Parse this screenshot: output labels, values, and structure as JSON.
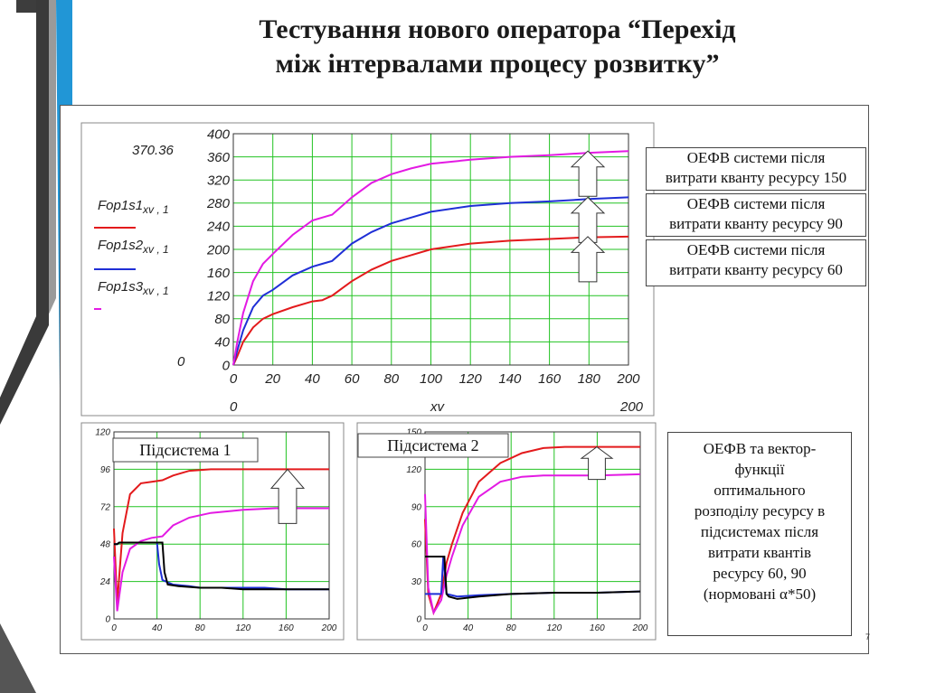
{
  "slide": {
    "title_line1": "Тестування нового оператора “Перехід",
    "title_line2": "між інтервалами процесу розвитку”",
    "page_number": "7",
    "accent_colors": [
      "#3a3a3a",
      "#2196d6",
      "#888888"
    ]
  },
  "main_chart_labels": {
    "ymax_readout": "370.36",
    "ymin_readout": "0",
    "xmin_readout": "0",
    "xmax_readout": "200",
    "xlabel": "xv",
    "legend": [
      {
        "main": "Fop1s1",
        "sub": "xv , 1",
        "color": "#e31a1c"
      },
      {
        "main": "Fop1s2",
        "sub": "xv , 1",
        "color": "#1f2fd6"
      },
      {
        "main": "Fop1s3",
        "sub": "xv , 1",
        "color": "#e31ae3"
      }
    ]
  },
  "legend_boxes": [
    {
      "line1": "ОЕФВ системи після",
      "line2": "витрати кванту ресурсу 150"
    },
    {
      "line1": "ОЕФВ системи після",
      "line2": "витрати кванту ресурсу 90"
    },
    {
      "line1": "ОЕФВ системи після",
      "line2": "витрати кванту ресурсу 60"
    }
  ],
  "side_note": {
    "lines": [
      "ОЕФВ та вектор-",
      "функції",
      "оптимального",
      "розподілу ресурсу в",
      "підсистемах після",
      "витрати квантів",
      "ресурсу 60, 90",
      "(нормовані α*50)"
    ]
  },
  "chart_data": [
    {
      "type": "line",
      "xlim": [
        0,
        200
      ],
      "ylim": [
        0,
        400
      ],
      "xticks": [
        0,
        20,
        40,
        60,
        80,
        100,
        120,
        140,
        160,
        180,
        200
      ],
      "yticks": [
        0,
        40,
        80,
        120,
        160,
        200,
        240,
        280,
        320,
        360,
        400
      ],
      "grid": true,
      "series": [
        {
          "name": "Fop1s1",
          "color": "#e31a1c",
          "x": [
            0,
            2,
            5,
            10,
            15,
            20,
            30,
            40,
            45,
            50,
            60,
            70,
            80,
            90,
            100,
            120,
            140,
            160,
            180,
            200
          ],
          "y": [
            0,
            15,
            40,
            65,
            80,
            88,
            100,
            110,
            112,
            120,
            145,
            165,
            180,
            190,
            200,
            210,
            215,
            218,
            221,
            222
          ]
        },
        {
          "name": "Fop1s2",
          "color": "#1f2fd6",
          "x": [
            0,
            2,
            5,
            10,
            15,
            20,
            30,
            40,
            45,
            50,
            60,
            70,
            80,
            90,
            100,
            120,
            140,
            160,
            180,
            200
          ],
          "y": [
            0,
            25,
            60,
            100,
            120,
            130,
            155,
            170,
            175,
            180,
            210,
            230,
            245,
            255,
            265,
            275,
            280,
            283,
            287,
            290
          ]
        },
        {
          "name": "Fop1s3",
          "color": "#e31ae3",
          "x": [
            0,
            2,
            5,
            10,
            15,
            20,
            30,
            40,
            45,
            50,
            60,
            70,
            80,
            90,
            100,
            120,
            140,
            160,
            180,
            200
          ],
          "y": [
            0,
            40,
            90,
            145,
            175,
            192,
            225,
            250,
            255,
            260,
            290,
            315,
            330,
            340,
            348,
            355,
            360,
            363,
            367,
            370
          ]
        }
      ],
      "arrows_at_y": [
        370,
        290,
        222
      ]
    },
    {
      "type": "line",
      "title": "Підсистема 1",
      "xlim": [
        0,
        200
      ],
      "ylim": [
        0,
        120
      ],
      "xticks": [
        0,
        40,
        80,
        120,
        160,
        200
      ],
      "yticks": [
        0,
        24,
        48,
        72,
        96,
        120
      ],
      "grid": true,
      "series": [
        {
          "color": "#e31a1c",
          "x": [
            0,
            3,
            8,
            15,
            25,
            35,
            45,
            55,
            70,
            90,
            120,
            150,
            200
          ],
          "y": [
            58,
            10,
            55,
            80,
            87,
            88,
            89,
            92,
            95,
            96,
            96,
            96,
            96
          ]
        },
        {
          "color": "#e31ae3",
          "x": [
            0,
            3,
            8,
            15,
            25,
            35,
            45,
            55,
            70,
            90,
            120,
            150,
            200
          ],
          "y": [
            40,
            5,
            30,
            45,
            50,
            52,
            53,
            60,
            65,
            68,
            70,
            71,
            71
          ]
        },
        {
          "color": "#1f2fd6",
          "x": [
            0,
            3,
            5,
            40,
            42,
            45,
            55,
            70,
            80,
            100,
            140,
            160,
            200
          ],
          "y": [
            48,
            48,
            49,
            49,
            35,
            25,
            22,
            21,
            20,
            20,
            20,
            19,
            19
          ]
        },
        {
          "color": "#000000",
          "x": [
            0,
            3,
            5,
            45,
            47,
            50,
            60,
            80,
            100,
            120,
            160,
            200
          ],
          "y": [
            48,
            48,
            49,
            49,
            30,
            22,
            21,
            20,
            20,
            19,
            19,
            19
          ]
        }
      ],
      "arrows_at_y": [
        96
      ]
    },
    {
      "type": "line",
      "title": "Підсистема 2",
      "xlim": [
        0,
        200
      ],
      "ylim": [
        0,
        150
      ],
      "xticks": [
        0,
        40,
        80,
        120,
        160,
        200
      ],
      "yticks": [
        0,
        30,
        60,
        90,
        120,
        150
      ],
      "grid": true,
      "series": [
        {
          "color": "#e31a1c",
          "x": [
            0,
            3,
            8,
            15,
            20,
            25,
            35,
            50,
            70,
            90,
            110,
            130,
            160,
            200
          ],
          "y": [
            80,
            20,
            5,
            20,
            45,
            60,
            85,
            110,
            125,
            133,
            137,
            138,
            138,
            138
          ]
        },
        {
          "color": "#e31ae3",
          "x": [
            0,
            3,
            8,
            15,
            20,
            25,
            35,
            50,
            70,
            90,
            110,
            130,
            160,
            200
          ],
          "y": [
            100,
            25,
            5,
            15,
            35,
            50,
            75,
            98,
            110,
            114,
            115,
            115,
            115,
            116
          ]
        },
        {
          "color": "#1f2fd6",
          "x": [
            0,
            5,
            15,
            17,
            20,
            30,
            50,
            80,
            120,
            160,
            200
          ],
          "y": [
            20,
            20,
            20,
            50,
            20,
            18,
            19,
            20,
            21,
            21,
            22
          ]
        },
        {
          "color": "#000000",
          "x": [
            0,
            5,
            18,
            20,
            22,
            30,
            50,
            80,
            120,
            160,
            200
          ],
          "y": [
            50,
            50,
            50,
            20,
            18,
            16,
            18,
            20,
            21,
            21,
            22
          ]
        }
      ],
      "arrows_at_y": [
        138
      ]
    }
  ]
}
